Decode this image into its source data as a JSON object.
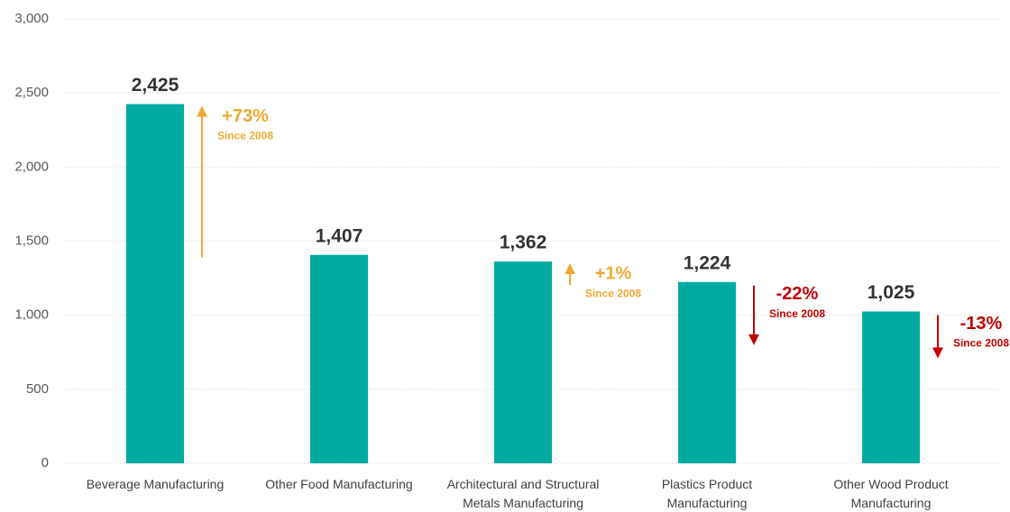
{
  "chart_data": {
    "type": "bar",
    "categories": [
      "Beverage Manufacturing",
      "Other Food Manufacturing",
      "Architectural and Structural Metals Manufacturing",
      "Plastics Product Manufacturing",
      "Other Wood Product Manufacturing"
    ],
    "values": [
      2425,
      1407,
      1362,
      1224,
      1025
    ],
    "value_labels": [
      "2,425",
      "1,407",
      "1,362",
      "1,224",
      "1,025"
    ],
    "color": "#00aba0",
    "ylim": [
      0,
      3000
    ],
    "yticks": [
      0,
      500,
      {
        "value": 1000,
        "label": "1,000"
      },
      {
        "value": 1500,
        "label": "1,500"
      },
      {
        "value": 2000,
        "label": "2,000"
      },
      {
        "value": 2500,
        "label": "2,500"
      },
      {
        "value": 3000,
        "label": "3,000"
      }
    ],
    "grid": true,
    "annotations": [
      {
        "text": "+73%",
        "note": "Since 2008",
        "color": "#f0a830"
      },
      null,
      {
        "text": "+1%",
        "note": "Since 2008",
        "color": "#f0a830"
      },
      {
        "text": "-22%",
        "note": "Since 2008",
        "color": "#c00000"
      },
      {
        "text": "-13%",
        "note": "Since 2008",
        "color": "#c00000"
      }
    ]
  }
}
